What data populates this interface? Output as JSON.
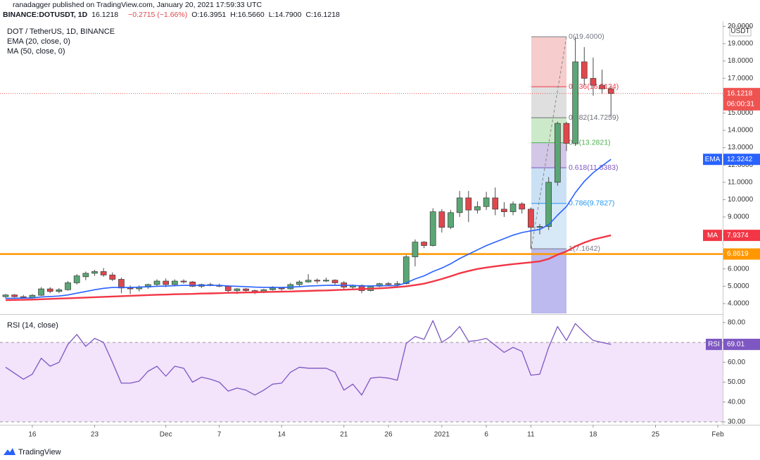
{
  "header": {
    "byline": "ranadagger published on TradingView.com, January 20, 2021 17:59:33 UTC",
    "symbol": "BINANCE:DOTUSDT, 1D",
    "last": "16.1218",
    "change": "−0.2715 (−1.66%)",
    "quote": [
      "O:16.3951",
      "H:16.5660",
      "L:14.7900",
      "C:16.1218"
    ]
  },
  "footer": "TradingView",
  "chart_data": [
    {
      "type": "candlestick",
      "title": "DOT / TetherUS, 1D, BINANCE",
      "currency": "USDT",
      "up_color": "#5aa775",
      "down_color": "#e0474c",
      "open": [
        4.4,
        4.5,
        4.4,
        4.35,
        4.48,
        4.85,
        4.7,
        4.8,
        5.2,
        5.55,
        5.75,
        5.85,
        5.65,
        5.4,
        4.9,
        4.85,
        4.95,
        5.1,
        5.3,
        5.1,
        5.3,
        5.25,
        5.0,
        5.1,
        5.05,
        5.0,
        4.75,
        4.85,
        4.75,
        4.65,
        4.8,
        4.9,
        4.85,
        5.1,
        5.25,
        5.35,
        5.3,
        5.35,
        5.2,
        4.95,
        5.05,
        4.75,
        5.0,
        5.15,
        5.1,
        5.15,
        6.7,
        7.55,
        7.35,
        9.3,
        8.4,
        9.25,
        10.1,
        9.4,
        9.6,
        10.1,
        9.45,
        9.3,
        9.75,
        9.45,
        8.4,
        8.45,
        11.0,
        14.4,
        13.25,
        17.95,
        17.0,
        16.6,
        16.3951
      ],
      "high": [
        4.55,
        4.55,
        4.5,
        4.55,
        4.95,
        4.95,
        4.9,
        5.3,
        5.7,
        5.85,
        5.95,
        6.05,
        5.8,
        5.5,
        5.05,
        5.05,
        5.15,
        5.4,
        5.45,
        5.4,
        5.4,
        5.3,
        5.15,
        5.2,
        5.15,
        5.05,
        4.9,
        4.9,
        4.8,
        4.85,
        5.0,
        4.95,
        5.2,
        5.35,
        5.7,
        5.45,
        5.5,
        5.4,
        5.3,
        5.1,
        5.1,
        5.05,
        5.2,
        5.25,
        5.3,
        6.8,
        7.7,
        7.6,
        9.5,
        9.45,
        9.4,
        10.5,
        10.5,
        9.9,
        10.45,
        10.7,
        9.85,
        9.9,
        9.85,
        9.55,
        8.6,
        11.3,
        14.5,
        14.5,
        19.4,
        18.8,
        18.2,
        17.5,
        16.566
      ],
      "low": [
        4.3,
        4.35,
        4.3,
        4.3,
        4.45,
        4.6,
        4.6,
        4.75,
        5.1,
        5.35,
        5.6,
        5.55,
        5.3,
        4.6,
        4.55,
        4.7,
        4.85,
        5.0,
        4.95,
        5.0,
        5.15,
        4.95,
        4.9,
        5.0,
        4.95,
        4.65,
        4.55,
        4.65,
        4.55,
        4.6,
        4.75,
        4.75,
        4.8,
        5.0,
        5.2,
        5.15,
        5.25,
        5.1,
        4.85,
        4.8,
        4.6,
        4.7,
        4.95,
        5.05,
        5.0,
        5.1,
        6.15,
        7.2,
        7.3,
        8.1,
        8.3,
        9.0,
        8.7,
        9.2,
        9.4,
        9.1,
        9.0,
        9.1,
        9.2,
        7.1642,
        8.0,
        8.25,
        10.8,
        12.8,
        13.1,
        16.6,
        16.0,
        16.1,
        14.79
      ],
      "close": [
        4.5,
        4.4,
        4.35,
        4.48,
        4.85,
        4.7,
        4.8,
        5.2,
        5.6,
        5.75,
        5.85,
        5.65,
        5.4,
        4.9,
        4.85,
        4.95,
        5.1,
        5.3,
        5.1,
        5.3,
        5.25,
        5.0,
        5.1,
        5.05,
        5.0,
        4.75,
        4.85,
        4.75,
        4.65,
        4.8,
        4.9,
        4.85,
        5.1,
        5.25,
        5.35,
        5.3,
        5.35,
        5.2,
        4.95,
        5.05,
        4.75,
        5.0,
        5.15,
        5.1,
        5.15,
        6.7,
        7.55,
        7.35,
        9.3,
        8.4,
        9.25,
        10.1,
        9.4,
        9.6,
        10.1,
        9.45,
        9.3,
        9.75,
        9.45,
        8.4,
        8.45,
        11.0,
        14.4,
        13.25,
        17.95,
        17.0,
        16.6,
        16.3951,
        16.1218
      ],
      "series": [
        {
          "name": "EMA (20, close, 0)",
          "short": "EMA",
          "color": "#2962ff",
          "last_label": "12.3242",
          "values": [
            4.3,
            4.31,
            4.32,
            4.33,
            4.38,
            4.41,
            4.44,
            4.5,
            4.6,
            4.7,
            4.8,
            4.88,
            4.93,
            4.93,
            4.93,
            4.95,
            4.97,
            5.0,
            5.01,
            5.03,
            5.05,
            5.05,
            5.05,
            5.05,
            5.05,
            5.02,
            5.0,
            4.98,
            4.95,
            4.94,
            4.94,
            4.93,
            4.95,
            4.98,
            5.01,
            5.03,
            5.05,
            5.06,
            5.05,
            5.05,
            5.02,
            5.02,
            5.03,
            5.03,
            5.04,
            5.2,
            5.42,
            5.6,
            5.85,
            6.05,
            6.3,
            6.6,
            6.85,
            7.1,
            7.35,
            7.55,
            7.75,
            7.95,
            8.1,
            8.2,
            8.28,
            8.55,
            9.1,
            9.6,
            10.4,
            11.05,
            11.55,
            11.95,
            12.3242
          ]
        },
        {
          "name": "MA (50, close, 0)",
          "short": "MA",
          "color": "#f23645",
          "last_label": "7.9374",
          "values": [
            4.2,
            4.21,
            4.22,
            4.23,
            4.25,
            4.27,
            4.29,
            4.31,
            4.33,
            4.35,
            4.37,
            4.39,
            4.41,
            4.43,
            4.45,
            4.47,
            4.49,
            4.51,
            4.52,
            4.54,
            4.55,
            4.56,
            4.58,
            4.59,
            4.6,
            4.62,
            4.63,
            4.64,
            4.65,
            4.67,
            4.68,
            4.69,
            4.7,
            4.72,
            4.73,
            4.75,
            4.76,
            4.78,
            4.8,
            4.82,
            4.84,
            4.86,
            4.88,
            4.91,
            4.95,
            5.0,
            5.07,
            5.15,
            5.28,
            5.42,
            5.58,
            5.75,
            5.88,
            6.0,
            6.08,
            6.15,
            6.22,
            6.28,
            6.33,
            6.38,
            6.44,
            6.58,
            6.82,
            7.02,
            7.3,
            7.52,
            7.7,
            7.82,
            7.9374
          ]
        }
      ],
      "last_price": {
        "value": 16.1218,
        "label": "16.1218",
        "countdown": "06:00:31",
        "color": "#ef5350"
      },
      "hlines": [
        {
          "value": 6.8619,
          "label": "6.8619",
          "color": "#ff9800"
        }
      ],
      "fib": [
        {
          "value": 19.4,
          "label": "0(19.4000)",
          "color": "#787b86",
          "fill": "#f5c6c6"
        },
        {
          "value": 16.5124,
          "label": "0.236(16.5124)",
          "color": "#f23645",
          "fill": "#dcdcdc"
        },
        {
          "value": 14.7259,
          "label": "0.382(14.7259)",
          "color": "#6d6f78",
          "fill": "#c6e8c4"
        },
        {
          "value": 13.2821,
          "label": "0.5(13.2821)",
          "color": "#4caf50",
          "fill": "#cdc1e3"
        },
        {
          "value": 11.8383,
          "label": "0.618(11.8383)",
          "color": "#7e57c2",
          "fill": "#c4ddf3"
        },
        {
          "value": 9.7827,
          "label": "0.786(9.7827)",
          "color": "#2196f3",
          "fill": "#d3e6f6"
        },
        {
          "value": 7.1642,
          "label": "1(7.1642)",
          "color": "#787b86",
          "fill": "#b5b2ec"
        }
      ],
      "ylim": [
        3.43,
        20.3
      ],
      "yticks": [
        {
          "value": 4,
          "label": "4.0000"
        },
        {
          "value": 5,
          "label": "5.0000"
        },
        {
          "value": 6,
          "label": "6.0000"
        },
        {
          "value": 7,
          "label": "7.0000"
        },
        {
          "value": 8,
          "label": "8.0000"
        },
        {
          "value": 9,
          "label": "9.0000"
        },
        {
          "value": 10,
          "label": "10.0000"
        },
        {
          "value": 11,
          "label": "11.0000"
        },
        {
          "value": 12,
          "label": "12.0000"
        },
        {
          "value": 13,
          "label": "13.0000"
        },
        {
          "value": 14,
          "label": "14.0000"
        },
        {
          "value": 15,
          "label": "15.0000"
        },
        {
          "value": 16,
          "label": "16.0000"
        },
        {
          "value": 17,
          "label": "17.0000"
        },
        {
          "value": 18,
          "label": "18.0000"
        },
        {
          "value": 19,
          "label": "19.0000"
        },
        {
          "value": 20,
          "label": "20.0000"
        }
      ]
    },
    {
      "type": "line",
      "title": "RSI (14, close)",
      "series": [
        {
          "name": "RSI",
          "color": "#7e57c2",
          "last_label": "69.01",
          "values": [
            57.5,
            54.5,
            51.5,
            54,
            62,
            58,
            60,
            69,
            74,
            68,
            72,
            70,
            60,
            49.5,
            49.5,
            50.5,
            55.5,
            58,
            53,
            58,
            57,
            50,
            52.5,
            51.5,
            50,
            45.5,
            47,
            46,
            43.5,
            46,
            49,
            49.5,
            55,
            57.5,
            57,
            57,
            57,
            55,
            46,
            49,
            43.5,
            52,
            52.5,
            52,
            51,
            69.5,
            73,
            71.5,
            81,
            70,
            73,
            78,
            70.5,
            71,
            72,
            68.5,
            65,
            67.5,
            65.5,
            53.5,
            54,
            67.5,
            78,
            71,
            79.5,
            75,
            71,
            70,
            69.01
          ]
        }
      ],
      "band": [
        30,
        70
      ],
      "band_color": "#f3e3fb",
      "ylim": [
        28.9,
        83.5
      ],
      "yticks": [
        {
          "value": 30,
          "label": "30.00"
        },
        {
          "value": 40,
          "label": "40.00"
        },
        {
          "value": 50,
          "label": "50.00"
        },
        {
          "value": 60,
          "label": "60.00"
        },
        {
          "value": 70,
          "label": "70.00"
        },
        {
          "value": 80,
          "label": "80.00"
        }
      ],
      "xlim": [
        -0.63,
        80.55
      ],
      "xticks": [
        {
          "value": 3,
          "label": "16"
        },
        {
          "value": 10,
          "label": "23"
        },
        {
          "value": 18,
          "label": "Dec"
        },
        {
          "value": 24,
          "label": "7"
        },
        {
          "value": 31,
          "label": "14"
        },
        {
          "value": 38,
          "label": "21"
        },
        {
          "value": 43,
          "label": "26"
        },
        {
          "value": 49,
          "label": "2021"
        },
        {
          "value": 54,
          "label": "6"
        },
        {
          "value": 59,
          "label": "11"
        },
        {
          "value": 66,
          "label": "18"
        },
        {
          "value": 73,
          "label": "25"
        },
        {
          "value": 80,
          "label": "Feb"
        }
      ]
    }
  ]
}
